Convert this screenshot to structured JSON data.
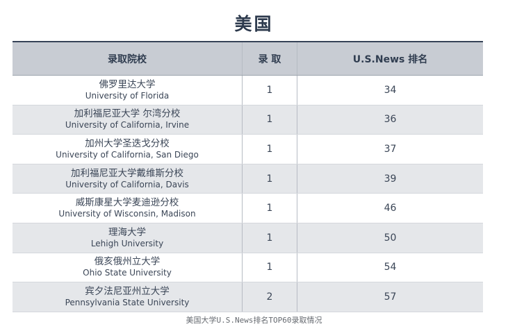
{
  "title": "美国",
  "table": {
    "headers": {
      "school": "录取院校",
      "admitted": "录 取",
      "rank": "U.S.News 排名"
    },
    "rows": [
      {
        "cn": "佛罗里达大学",
        "en": "University of Florida",
        "admitted": "1",
        "rank": "34"
      },
      {
        "cn": "加利福尼亚大学 尔湾分校",
        "en": "University of California, Irvine",
        "admitted": "1",
        "rank": "36"
      },
      {
        "cn": "加州大学圣迭戈分校",
        "en": "University of California, San Diego",
        "admitted": "1",
        "rank": "37"
      },
      {
        "cn": "加利福尼亚大学戴维斯分校",
        "en": "University of California, Davis",
        "admitted": "1",
        "rank": "39"
      },
      {
        "cn": "威斯康星大学麦迪逊分校",
        "en": "University of Wisconsin, Madison",
        "admitted": "1",
        "rank": "46"
      },
      {
        "cn": "理海大学",
        "en": "Lehigh University",
        "admitted": "1",
        "rank": "50"
      },
      {
        "cn": "俄亥俄州立大学",
        "en": "Ohio State University",
        "admitted": "1",
        "rank": "54"
      },
      {
        "cn": "宾夕法尼亚州立大学",
        "en": "Pennsylvania State University",
        "admitted": "2",
        "rank": "57"
      }
    ]
  },
  "caption": "美国大学U.S.News排名TOP60录取情况"
}
